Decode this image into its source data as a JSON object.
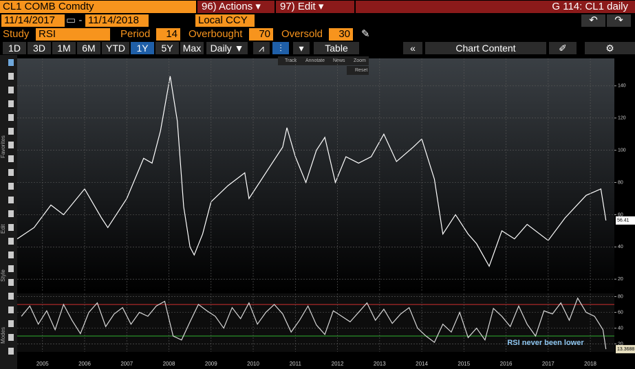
{
  "header": {
    "security": "CL1 COMB Comdty",
    "actions": "96) Actions",
    "edit": "97) Edit",
    "page": "G 114: CL1 daily"
  },
  "controls": {
    "start_date": "11/14/2017",
    "end_date": "11/14/2018",
    "currency": "Local CCY",
    "study_label": "Study",
    "study": "RSI",
    "period_label": "Period",
    "period": 14,
    "overbought_label": "Overbought",
    "overbought": 70,
    "oversold_label": "Oversold",
    "oversold": 30
  },
  "toolbar": {
    "ranges": [
      "1D",
      "3D",
      "1M",
      "6M",
      "YTD",
      "1Y",
      "5Y",
      "Max"
    ],
    "frequency": "Daily",
    "table": "Table",
    "chart_content": "Chart Content"
  },
  "sidebar": [
    "Favorites",
    "Edit",
    "Style",
    "Modes"
  ],
  "overlay": [
    "Track",
    "Annotate",
    "News",
    "Zoom",
    "Reset"
  ],
  "chart_data": [
    {
      "type": "line",
      "color": "#ffffff",
      "xlim": [
        2004.9,
        2019.07
      ],
      "ylim": [
        12,
        157
      ],
      "yticks": [
        20,
        40,
        60,
        80,
        100,
        120,
        140
      ],
      "grid": true,
      "x": [
        2004.9,
        2005.3,
        2005.7,
        2006.0,
        2006.5,
        2006.9,
        2007.05,
        2007.5,
        2007.9,
        2008.1,
        2008.3,
        2008.53,
        2008.7,
        2008.85,
        2009.0,
        2009.1,
        2009.3,
        2009.5,
        2009.9,
        2010.3,
        2010.4,
        2010.9,
        2011.2,
        2011.3,
        2011.5,
        2011.75,
        2012.0,
        2012.2,
        2012.45,
        2012.7,
        2013.0,
        2013.3,
        2013.6,
        2013.9,
        2014.3,
        2014.5,
        2014.8,
        2015.0,
        2015.3,
        2015.6,
        2015.8,
        2016.1,
        2016.4,
        2016.7,
        2017.0,
        2017.5,
        2017.9,
        2018.4,
        2018.75,
        2018.87
      ],
      "values": [
        45,
        52,
        66,
        60,
        76,
        58,
        52,
        70,
        95,
        92,
        112,
        146,
        118,
        65,
        40,
        35,
        48,
        68,
        78,
        86,
        70,
        90,
        102,
        114,
        96,
        80,
        100,
        108,
        80,
        96,
        92,
        96,
        110,
        93,
        102,
        107,
        82,
        48,
        60,
        48,
        42,
        28,
        50,
        45,
        54,
        44,
        58,
        72,
        76,
        56.41
      ]
    },
    {
      "type": "line",
      "color": "#d8d8d8",
      "xlim": [
        2004.9,
        2019.07
      ],
      "ylim": [
        10,
        84
      ],
      "yticks": [
        20,
        40,
        60,
        80
      ],
      "grid": true,
      "xticks": [
        {
          "value": 2005.5,
          "label": "2005"
        },
        {
          "value": 2006.5,
          "label": "2006"
        },
        {
          "value": 2007.5,
          "label": "2007"
        },
        {
          "value": 2008.5,
          "label": "2008"
        },
        {
          "value": 2009.5,
          "label": "2009"
        },
        {
          "value": 2010.5,
          "label": "2010"
        },
        {
          "value": 2011.5,
          "label": "2011"
        },
        {
          "value": 2012.5,
          "label": "2012"
        },
        {
          "value": 2013.5,
          "label": "2013"
        },
        {
          "value": 2014.5,
          "label": "2014"
        },
        {
          "value": 2015.5,
          "label": "2015"
        },
        {
          "value": 2016.5,
          "label": "2016"
        },
        {
          "value": 2017.5,
          "label": "2017"
        },
        {
          "value": 2018.5,
          "label": "2018"
        }
      ],
      "annotation": "RSI never been lower",
      "x": [
        2005.0,
        2005.2,
        2005.4,
        2005.6,
        2005.8,
        2006.0,
        2006.2,
        2006.4,
        2006.6,
        2006.8,
        2007.0,
        2007.2,
        2007.4,
        2007.6,
        2007.8,
        2008.0,
        2008.2,
        2008.4,
        2008.6,
        2008.8,
        2009.0,
        2009.2,
        2009.4,
        2009.6,
        2009.8,
        2010.0,
        2010.2,
        2010.4,
        2010.6,
        2010.8,
        2011.0,
        2011.2,
        2011.4,
        2011.6,
        2011.8,
        2012.0,
        2012.2,
        2012.4,
        2012.6,
        2012.8,
        2013.0,
        2013.2,
        2013.4,
        2013.6,
        2013.8,
        2014.0,
        2014.2,
        2014.4,
        2014.6,
        2014.8,
        2015.0,
        2015.2,
        2015.4,
        2015.6,
        2015.8,
        2016.0,
        2016.2,
        2016.4,
        2016.6,
        2016.8,
        2017.0,
        2017.2,
        2017.4,
        2017.6,
        2017.8,
        2018.0,
        2018.2,
        2018.4,
        2018.6,
        2018.8,
        2018.87
      ],
      "values": [
        55,
        68,
        45,
        62,
        38,
        70,
        50,
        33,
        60,
        72,
        42,
        58,
        66,
        45,
        60,
        55,
        68,
        74,
        30,
        25,
        48,
        70,
        62,
        55,
        40,
        66,
        52,
        72,
        45,
        60,
        70,
        58,
        35,
        50,
        68,
        44,
        32,
        62,
        55,
        48,
        60,
        72,
        50,
        64,
        46,
        58,
        66,
        40,
        30,
        22,
        45,
        35,
        60,
        28,
        40,
        25,
        65,
        55,
        42,
        68,
        45,
        30,
        62,
        58,
        72,
        50,
        78,
        60,
        55,
        38,
        13.3688
      ]
    }
  ]
}
